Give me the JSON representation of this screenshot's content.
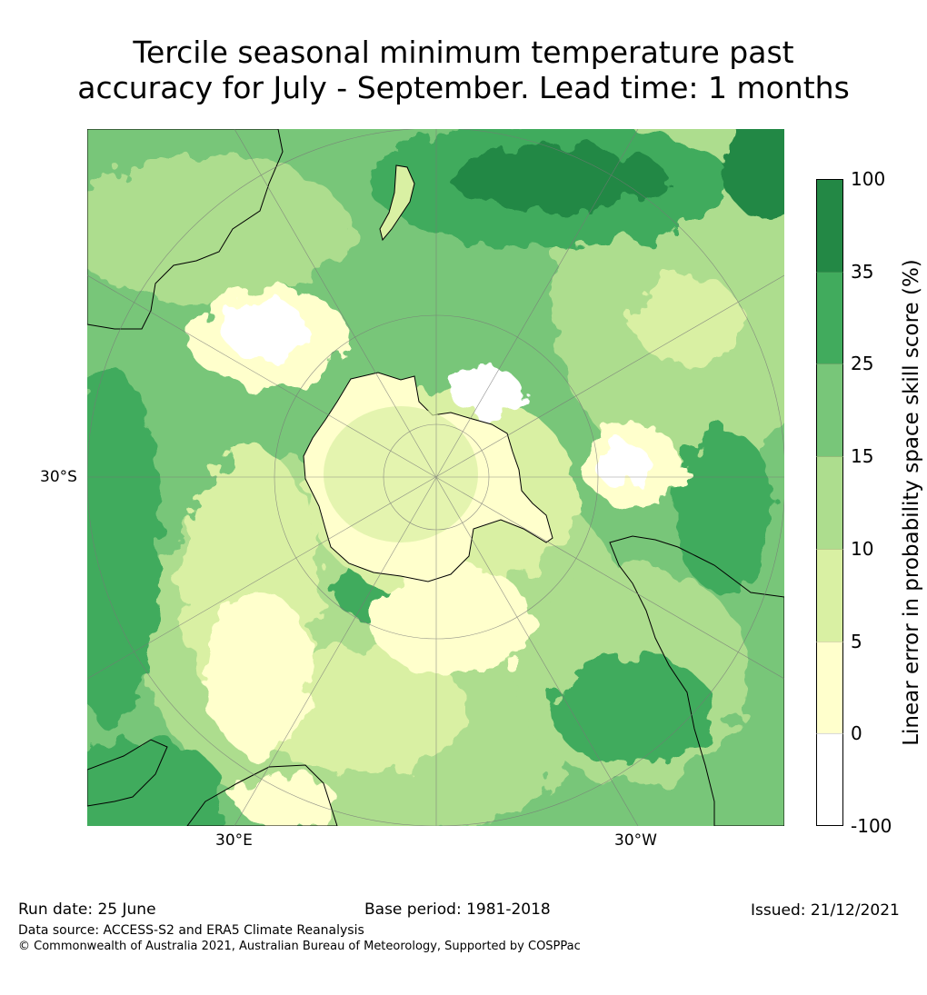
{
  "title": {
    "line1": "Tercile seasonal minimum temperature past",
    "line2": "accuracy for July - September. Lead time: 1 months"
  },
  "map": {
    "projection": "south-polar-stereographic",
    "tick_labels": {
      "lat": "30°S",
      "lon_left": "30°E",
      "lon_right": "30°W"
    }
  },
  "colorbar": {
    "title": "Linear error in probability space skill score (%)",
    "levels": [
      "100",
      "35",
      "25",
      "15",
      "10",
      "5",
      "0",
      "-100"
    ],
    "colors": [
      "#238845",
      "#41ab5d",
      "#78c679",
      "#addd8e",
      "#d9f0a3",
      "#ffffcc",
      "#ffffff"
    ]
  },
  "footer": {
    "run_date": "Run date: 25 June",
    "base_period": "Base period: 1981-2018",
    "issued": "Issued: 21/12/2021",
    "source": "Data source: ACCESS-S2 and ERA5 Climate Reanalysis",
    "copyright": "© Commonwealth of Australia 2021, Australian Bureau of Meteorology, Supported by COSPPac"
  }
}
